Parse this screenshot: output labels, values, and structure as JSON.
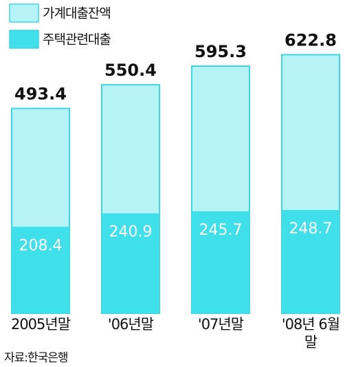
{
  "chart_data": {
    "type": "bar",
    "categories": [
      "2005년말",
      "'06년말",
      "'07년말",
      "'08년 6월말"
    ],
    "series": [
      {
        "name": "가계대출잔액",
        "color": "#b6f3f7",
        "values": [
          493.4,
          550.4,
          595.3,
          622.8
        ]
      },
      {
        "name": "주택관련대출",
        "color": "#3fe0ea",
        "values": [
          208.4,
          240.9,
          245.7,
          248.7
        ]
      }
    ],
    "source": "자료:한국은행"
  }
}
